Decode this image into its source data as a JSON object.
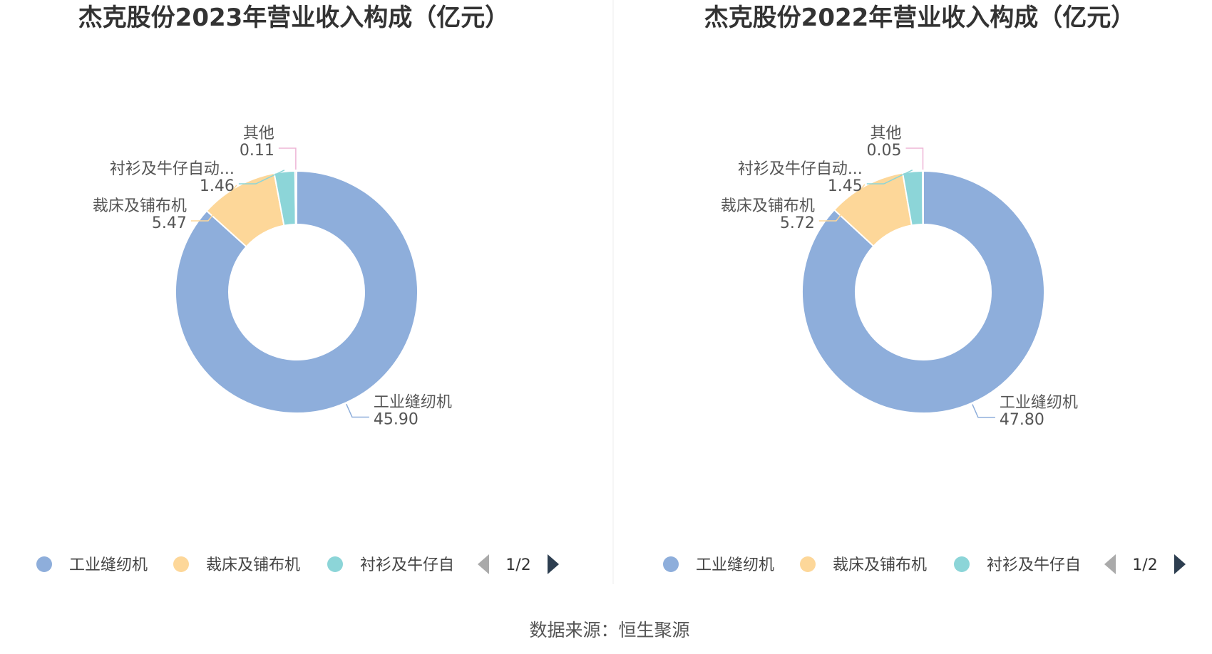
{
  "footer": {
    "source": "数据来源：恒生聚源"
  },
  "colors": {
    "工业缝纫机": "#8eaedb",
    "裁床及铺布机": "#fdd799",
    "衬衫及牛仔自动化设备": "#8cd5d8",
    "其他": "#eeb5d6",
    "nav_active": "#2d3e50",
    "nav_inactive": "#aaaaaa",
    "divider": "#eeeeee"
  },
  "chart_data": [
    {
      "type": "pie",
      "title": "杰克股份2023年营业收入构成（亿元）",
      "slices": [
        {
          "name": "工业缝纫机",
          "label": "工业缝纫机",
          "value": 45.9,
          "value_text": "45.90"
        },
        {
          "name": "裁床及铺布机",
          "label": "裁床及铺布机",
          "value": 5.47,
          "value_text": "5.47"
        },
        {
          "name": "衬衫及牛仔自动化设备",
          "label": "衬衫及牛仔自动...",
          "value": 1.46,
          "value_text": "1.46"
        },
        {
          "name": "其他",
          "label": "其他",
          "value": 0.11,
          "value_text": "0.11"
        }
      ],
      "legend": {
        "items": [
          "工业缝纫机",
          "裁床及铺布机",
          "衬衫及牛仔自"
        ],
        "page": "1/2"
      }
    },
    {
      "type": "pie",
      "title": "杰克股份2022年营业收入构成（亿元）",
      "slices": [
        {
          "name": "工业缝纫机",
          "label": "工业缝纫机",
          "value": 47.8,
          "value_text": "47.80"
        },
        {
          "name": "裁床及铺布机",
          "label": "裁床及铺布机",
          "value": 5.72,
          "value_text": "5.72"
        },
        {
          "name": "衬衫及牛仔自动化设备",
          "label": "衬衫及牛仔自动...",
          "value": 1.45,
          "value_text": "1.45"
        },
        {
          "name": "其他",
          "label": "其他",
          "value": 0.05,
          "value_text": "0.05"
        }
      ],
      "legend": {
        "items": [
          "工业缝纫机",
          "裁床及铺布机",
          "衬衫及牛仔自"
        ],
        "page": "1/2"
      }
    }
  ]
}
